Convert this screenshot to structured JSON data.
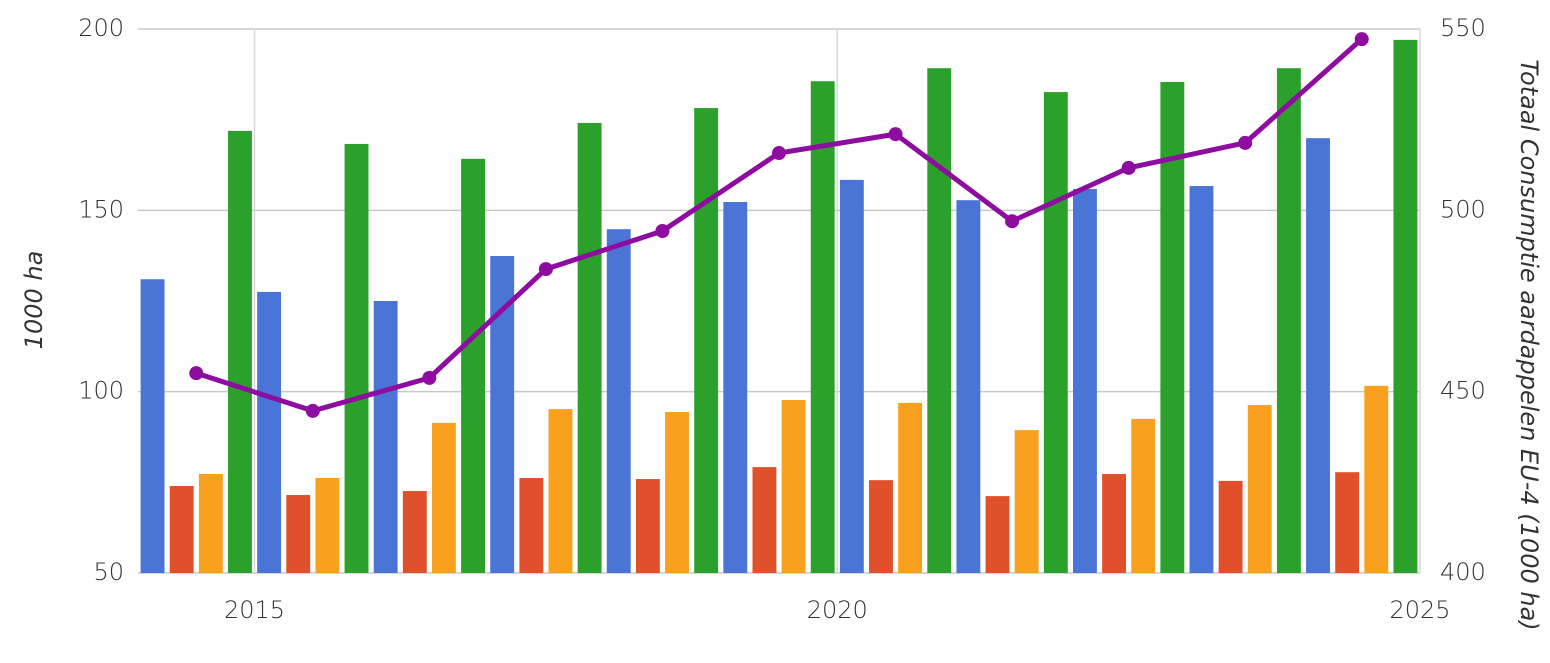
{
  "chart_data": {
    "type": "bar_line",
    "x": [
      2014.5,
      2015.5,
      2016.5,
      2017.5,
      2018.5,
      2019.5,
      2020.5,
      2021.5,
      2022.5,
      2023.5,
      2024.5
    ],
    "xlim": [
      2014,
      2025
    ],
    "xticks": [
      2015,
      2020,
      2025
    ],
    "ylabel": "1000 ha",
    "ylim": [
      50,
      200
    ],
    "yticks": [
      50,
      100,
      150,
      200
    ],
    "y2label": "Totaal Consumptie aardappelen EU-4 (1000 ha)",
    "y2lim": [
      400,
      550
    ],
    "y2ticks": [
      400,
      450,
      500,
      550
    ],
    "grid": true,
    "series": [
      {
        "type": "bar",
        "color": "#4a74d6",
        "values": [
          131,
          127.5,
          125,
          137.4,
          144.8,
          152.3,
          158.4,
          152.8,
          155.9,
          156.7,
          169.9
        ]
      },
      {
        "type": "bar",
        "color": "#e0512b",
        "values": [
          74,
          71.5,
          72.6,
          76.2,
          75.9,
          79.2,
          75.6,
          71.2,
          77.3,
          75.4,
          77.8
        ]
      },
      {
        "type": "bar",
        "color": "#f9a11f",
        "values": [
          77.3,
          76.2,
          91.4,
          95.2,
          94.4,
          97.7,
          96.9,
          89.4,
          92.5,
          96.3,
          101.6
        ]
      },
      {
        "type": "bar",
        "color": "#2ba02b",
        "values": [
          171.9,
          168.3,
          164.2,
          174.1,
          178.2,
          185.6,
          189.2,
          182.6,
          185.4,
          189.2,
          197
        ]
      },
      {
        "type": "line",
        "axis": "y2",
        "color": "#8e0ca0",
        "values": [
          455.1,
          444.7,
          453.8,
          483.8,
          494.3,
          515.8,
          521,
          497,
          511.7,
          518.6,
          547.2
        ]
      }
    ]
  }
}
